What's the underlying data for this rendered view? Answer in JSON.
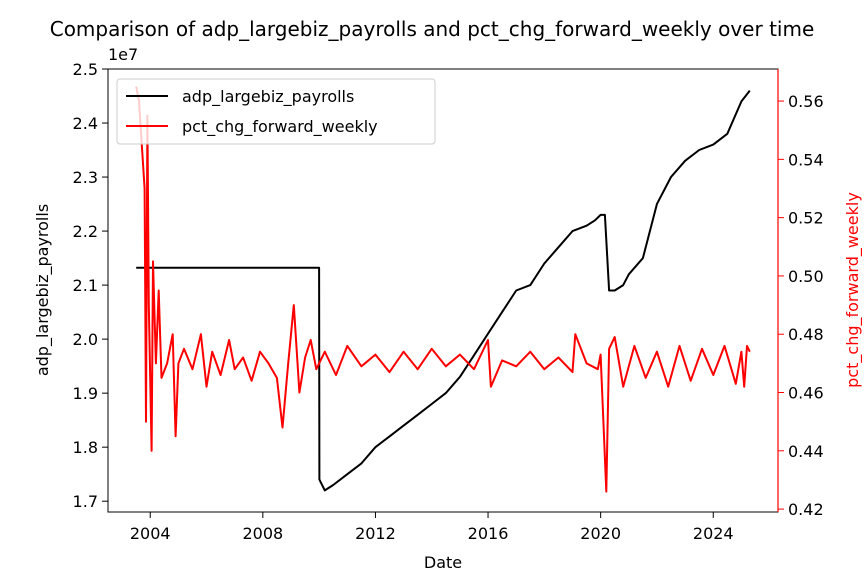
{
  "chart_data": {
    "type": "line",
    "title": "Comparison of adp_largebiz_payrolls and pct_chg_forward_weekly over time",
    "xlabel": "Date",
    "ylabel_left": "adp_largebiz_payrolls",
    "ylabel_right": "pct_chg_forward_weekly",
    "left_offset_text": "1e7",
    "left_axis_multiplier": 10000000,
    "xlim": [
      2002.5,
      2026.3
    ],
    "ylim_left": [
      1.68,
      2.5
    ],
    "ylim_right": [
      0.419,
      0.571
    ],
    "xticks": [
      2004,
      2008,
      2012,
      2016,
      2020,
      2024
    ],
    "yticks_left": [
      1.7,
      1.8,
      1.9,
      2.0,
      2.1,
      2.2,
      2.3,
      2.4,
      2.5
    ],
    "yticks_right": [
      0.42,
      0.44,
      0.46,
      0.48,
      0.5,
      0.52,
      0.54,
      0.56
    ],
    "grid": false,
    "legend_position": "top-left",
    "series": [
      {
        "name": "adp_largebiz_payrolls",
        "axis": "left",
        "color": "#000000",
        "points": [
          [
            2003.5,
            2.132
          ],
          [
            2010.0,
            2.132
          ],
          [
            2010.01,
            1.74
          ],
          [
            2010.2,
            1.72
          ],
          [
            2010.5,
            1.73
          ],
          [
            2011.0,
            1.75
          ],
          [
            2011.5,
            1.77
          ],
          [
            2012.0,
            1.8
          ],
          [
            2012.5,
            1.82
          ],
          [
            2013.0,
            1.84
          ],
          [
            2013.5,
            1.86
          ],
          [
            2014.0,
            1.88
          ],
          [
            2014.5,
            1.9
          ],
          [
            2015.0,
            1.93
          ],
          [
            2015.5,
            1.97
          ],
          [
            2016.0,
            2.01
          ],
          [
            2016.5,
            2.05
          ],
          [
            2017.0,
            2.09
          ],
          [
            2017.5,
            2.1
          ],
          [
            2018.0,
            2.14
          ],
          [
            2018.5,
            2.17
          ],
          [
            2019.0,
            2.2
          ],
          [
            2019.5,
            2.21
          ],
          [
            2019.8,
            2.22
          ],
          [
            2020.0,
            2.23
          ],
          [
            2020.15,
            2.23
          ],
          [
            2020.3,
            2.09
          ],
          [
            2020.5,
            2.09
          ],
          [
            2020.8,
            2.1
          ],
          [
            2021.0,
            2.12
          ],
          [
            2021.5,
            2.15
          ],
          [
            2022.0,
            2.25
          ],
          [
            2022.5,
            2.3
          ],
          [
            2023.0,
            2.33
          ],
          [
            2023.5,
            2.35
          ],
          [
            2024.0,
            2.36
          ],
          [
            2024.5,
            2.38
          ],
          [
            2025.0,
            2.44
          ],
          [
            2025.3,
            2.46
          ]
        ]
      },
      {
        "name": "pct_chg_forward_weekly",
        "axis": "right",
        "color": "#ff0000",
        "points": [
          [
            2003.5,
            0.565
          ],
          [
            2003.6,
            0.56
          ],
          [
            2003.7,
            0.545
          ],
          [
            2003.8,
            0.53
          ],
          [
            2003.85,
            0.45
          ],
          [
            2003.9,
            0.555
          ],
          [
            2003.95,
            0.49
          ],
          [
            2004.05,
            0.44
          ],
          [
            2004.1,
            0.505
          ],
          [
            2004.2,
            0.47
          ],
          [
            2004.3,
            0.495
          ],
          [
            2004.4,
            0.465
          ],
          [
            2004.6,
            0.47
          ],
          [
            2004.8,
            0.48
          ],
          [
            2004.9,
            0.445
          ],
          [
            2005.0,
            0.47
          ],
          [
            2005.2,
            0.475
          ],
          [
            2005.5,
            0.468
          ],
          [
            2005.8,
            0.48
          ],
          [
            2006.0,
            0.462
          ],
          [
            2006.2,
            0.474
          ],
          [
            2006.5,
            0.466
          ],
          [
            2006.8,
            0.478
          ],
          [
            2007.0,
            0.468
          ],
          [
            2007.3,
            0.472
          ],
          [
            2007.6,
            0.464
          ],
          [
            2007.9,
            0.474
          ],
          [
            2008.2,
            0.47
          ],
          [
            2008.5,
            0.465
          ],
          [
            2008.7,
            0.448
          ],
          [
            2008.9,
            0.47
          ],
          [
            2009.1,
            0.49
          ],
          [
            2009.3,
            0.46
          ],
          [
            2009.5,
            0.472
          ],
          [
            2009.7,
            0.478
          ],
          [
            2009.9,
            0.468
          ],
          [
            2010.2,
            0.474
          ],
          [
            2010.6,
            0.466
          ],
          [
            2011.0,
            0.476
          ],
          [
            2011.5,
            0.469
          ],
          [
            2012.0,
            0.473
          ],
          [
            2012.5,
            0.467
          ],
          [
            2013.0,
            0.474
          ],
          [
            2013.5,
            0.468
          ],
          [
            2014.0,
            0.475
          ],
          [
            2014.5,
            0.469
          ],
          [
            2015.0,
            0.473
          ],
          [
            2015.5,
            0.468
          ],
          [
            2016.0,
            0.478
          ],
          [
            2016.1,
            0.462
          ],
          [
            2016.5,
            0.471
          ],
          [
            2017.0,
            0.469
          ],
          [
            2017.5,
            0.474
          ],
          [
            2018.0,
            0.468
          ],
          [
            2018.5,
            0.472
          ],
          [
            2019.0,
            0.467
          ],
          [
            2019.1,
            0.48
          ],
          [
            2019.5,
            0.47
          ],
          [
            2019.9,
            0.468
          ],
          [
            2020.0,
            0.473
          ],
          [
            2020.2,
            0.426
          ],
          [
            2020.3,
            0.475
          ],
          [
            2020.5,
            0.479
          ],
          [
            2020.8,
            0.462
          ],
          [
            2021.2,
            0.476
          ],
          [
            2021.6,
            0.465
          ],
          [
            2022.0,
            0.474
          ],
          [
            2022.4,
            0.462
          ],
          [
            2022.8,
            0.476
          ],
          [
            2023.2,
            0.464
          ],
          [
            2023.6,
            0.475
          ],
          [
            2024.0,
            0.466
          ],
          [
            2024.4,
            0.476
          ],
          [
            2024.8,
            0.463
          ],
          [
            2025.0,
            0.474
          ],
          [
            2025.1,
            0.462
          ],
          [
            2025.2,
            0.476
          ],
          [
            2025.3,
            0.474
          ]
        ]
      }
    ]
  }
}
